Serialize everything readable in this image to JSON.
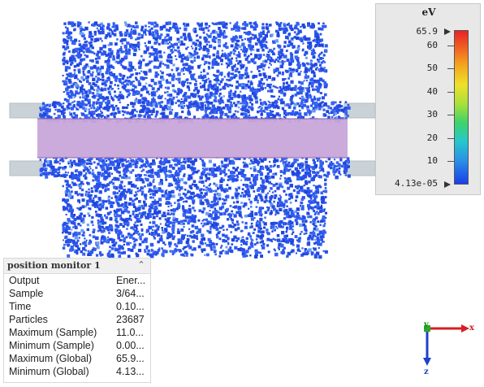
{
  "legend": {
    "unit": "eV",
    "max_label": "65.9",
    "min_label": "4.13e-05",
    "ticks": [
      "60",
      "50",
      "40",
      "30",
      "20",
      "10"
    ],
    "scale_max": 65.9,
    "scale_min": 4.13e-05
  },
  "info_panel": {
    "title": "position   monitor 1",
    "rows": [
      {
        "key": "Output",
        "value": "Ener..."
      },
      {
        "key": "Sample",
        "value": "3/64..."
      },
      {
        "key": "Time",
        "value": "0.10..."
      },
      {
        "key": "Particles",
        "value": "23687"
      },
      {
        "key": "Maximum (Sample)",
        "value": "11.0..."
      },
      {
        "key": "Minimum (Sample)",
        "value": "0.00..."
      },
      {
        "key": "Maximum (Global)",
        "value": "65.9..."
      },
      {
        "key": "Minimum (Global)",
        "value": "4.13..."
      }
    ]
  },
  "axes": {
    "x": "x",
    "y": "y",
    "z": "z"
  },
  "colors": {
    "particle_blue": "#2a4fe8",
    "particle_light": "#6fa0f0",
    "beam_pink": "#c8a6d9",
    "tube_gray": "#c9d2d6"
  }
}
